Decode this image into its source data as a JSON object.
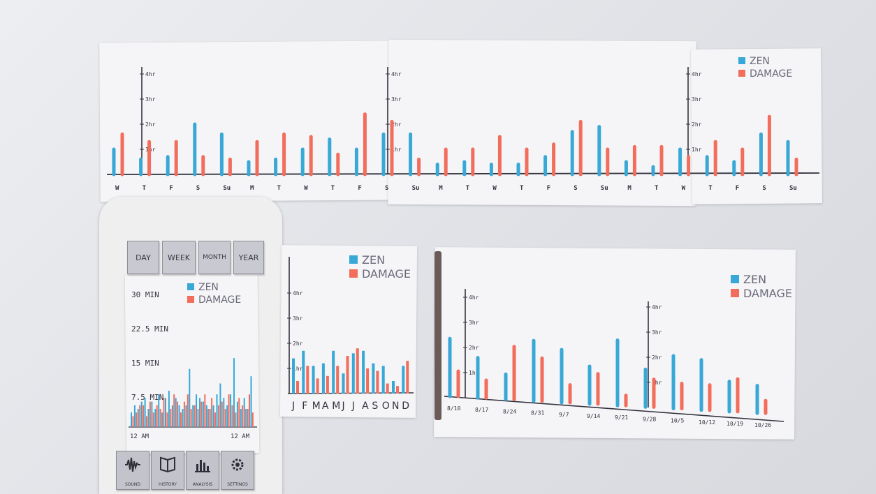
{
  "colors": {
    "zen": "#38a8d6",
    "damage": "#f26d5b",
    "pen": "#333340"
  },
  "legend": {
    "zen": "ZEN",
    "damage": "DAMAGE"
  },
  "phone": {
    "tabs": [
      {
        "label": "DAY",
        "name": "tab-day"
      },
      {
        "label": "WEEK",
        "name": "tab-week"
      },
      {
        "label": "MONTH",
        "name": "tab-month"
      },
      {
        "label": "YEAR",
        "name": "tab-year"
      }
    ],
    "nav": [
      {
        "label": "SOUND",
        "icon": "soundwave-icon"
      },
      {
        "label": "HISTORY",
        "icon": "book-icon"
      },
      {
        "label": "ANALYSIS",
        "icon": "bar-chart-icon"
      },
      {
        "label": "SETTINGS",
        "icon": "gear-icon"
      }
    ]
  },
  "chart_data": [
    {
      "id": "week-strip",
      "type": "bar",
      "categories": [
        "W",
        "T",
        "F",
        "S",
        "Su",
        "M",
        "T",
        "W",
        "T",
        "F",
        "S",
        "Su",
        "M",
        "T",
        "W",
        "T",
        "F",
        "S",
        "Su",
        "M",
        "T",
        "W",
        "T",
        "F",
        "S",
        "Su"
      ],
      "y_ticks": [
        "4hr",
        "3hr",
        "2hr",
        "1hr"
      ],
      "series": [
        {
          "name": "ZEN",
          "values": [
            1.0,
            0.6,
            0.7,
            2.0,
            1.6,
            0.5,
            0.6,
            1.0,
            1.4,
            1.0,
            1.6,
            1.6,
            0.4,
            0.5,
            0.4,
            0.4,
            0.7,
            1.7,
            1.9,
            0.5,
            0.3,
            1.0,
            0.7,
            0.5,
            1.6,
            1.3
          ]
        },
        {
          "name": "DAMAGE",
          "values": [
            1.6,
            1.3,
            1.3,
            0.7,
            0.6,
            1.3,
            1.6,
            1.5,
            0.8,
            2.4,
            2.1,
            0.6,
            1.0,
            1.0,
            1.5,
            1.0,
            1.2,
            2.1,
            1.0,
            1.1,
            1.1,
            0.7,
            1.3,
            1.0,
            2.3,
            0.6
          ]
        }
      ],
      "ylim": [
        0,
        4.2
      ],
      "legend": "top-right"
    },
    {
      "id": "day-chart",
      "type": "bar",
      "y_ticks": [
        "30 MIN",
        "22.5 MIN",
        "15 MIN",
        "7.5 MIN"
      ],
      "x_ticks": [
        "12 AM",
        "12 AM"
      ],
      "series": [
        {
          "name": "ZEN",
          "values": [
            4,
            6,
            5,
            7,
            8,
            5,
            7,
            5,
            9,
            4,
            8,
            10,
            6,
            8,
            6,
            5,
            6,
            16,
            6,
            9,
            8,
            7,
            6,
            5,
            6,
            9,
            12,
            8,
            6,
            9,
            19,
            7,
            5,
            8,
            5,
            14
          ]
        },
        {
          "name": "DAMAGE",
          "values": [
            3,
            4,
            6,
            6,
            3,
            7,
            4,
            6,
            5,
            8,
            4,
            5,
            9,
            7,
            4,
            7,
            9,
            5,
            6,
            5,
            7,
            9,
            5,
            8,
            4,
            6,
            7,
            5,
            9,
            6,
            4,
            8,
            6,
            5,
            9,
            4
          ]
        }
      ],
      "ylim": [
        0,
        32
      ],
      "legend": "top-right"
    },
    {
      "id": "year-chart",
      "type": "bar",
      "categories": [
        "J",
        "F",
        "M",
        "A",
        "M",
        "J",
        "J",
        "A",
        "S",
        "O",
        "N",
        "D"
      ],
      "y_ticks": [
        "4hr",
        "3hr",
        "2hr",
        "1hr"
      ],
      "series": [
        {
          "name": "ZEN",
          "values": [
            1.4,
            1.7,
            1.1,
            1.2,
            1.7,
            0.8,
            1.6,
            1.7,
            1.2,
            1.1,
            0.5,
            1.1
          ]
        },
        {
          "name": "DAMAGE",
          "values": [
            0.5,
            1.1,
            0.6,
            0.7,
            1.1,
            1.5,
            1.8,
            1.0,
            0.9,
            0.4,
            0.3,
            1.3
          ]
        }
      ],
      "ylim": [
        0,
        4.2
      ],
      "legend": "top-right"
    },
    {
      "id": "month-chart",
      "type": "bar",
      "categories": [
        "8/10",
        "8/17",
        "8/24",
        "8/31",
        "9/7",
        "9/14",
        "9/21",
        "9/28",
        "10/5",
        "10/12",
        "10/19",
        "10/26"
      ],
      "y_ticks": [
        "4hr",
        "3hr",
        "2hr",
        "1hr"
      ],
      "series": [
        {
          "name": "ZEN",
          "values": [
            2.3,
            1.6,
            1.0,
            2.4,
            2.1,
            1.5,
            2.6,
            1.5,
            2.1,
            2.0,
            1.2,
            1.1
          ]
        },
        {
          "name": "DAMAGE",
          "values": [
            1.0,
            0.7,
            2.1,
            1.7,
            0.7,
            1.2,
            0.4,
            1.1,
            1.0,
            1.0,
            1.3,
            0.5
          ]
        }
      ],
      "ylim": [
        0,
        4.2
      ],
      "legend": "top-right"
    }
  ]
}
